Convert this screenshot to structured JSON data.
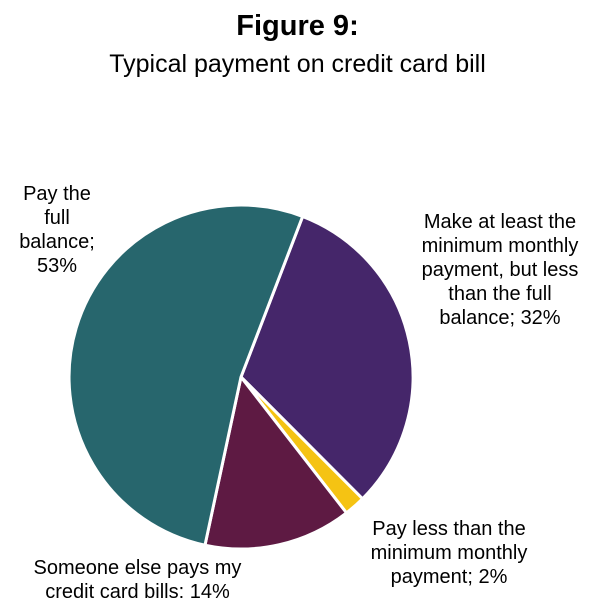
{
  "chart_data": {
    "type": "pie",
    "title": "Figure 9:",
    "subtitle": "Typical payment on credit card bill",
    "slices": [
      {
        "label_lines": [
          "Make at least the",
          "minimum monthly",
          "payment, but less",
          "than the full",
          "balance; 32%"
        ],
        "value": 32,
        "color": "#45266a"
      },
      {
        "label_lines": [
          "Pay less than the",
          "minimum monthly",
          "payment; 2%"
        ],
        "value": 2,
        "color": "#f5c313"
      },
      {
        "label_lines": [
          "Someone else pays my",
          "credit card bills: 14%"
        ],
        "value": 14,
        "color": "#5e1a43"
      },
      {
        "label_lines": [
          "Pay the",
          "full",
          "balance;",
          "53%"
        ],
        "value": 53,
        "color": "#27666d"
      }
    ]
  }
}
